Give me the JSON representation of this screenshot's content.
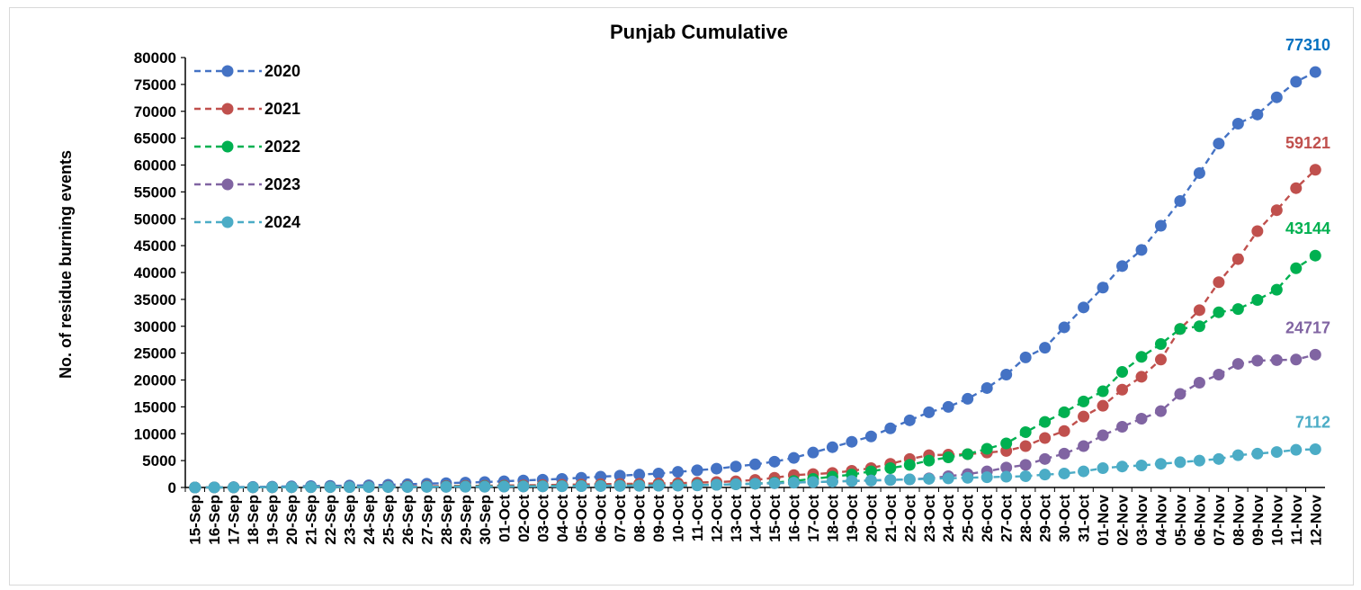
{
  "chart_data": {
    "type": "line",
    "title": "Punjab Cumulative",
    "ylabel": "No. of residue burning events",
    "xlabel": "",
    "ylim": [
      0,
      80000
    ],
    "ytick_step": 5000,
    "yticks": [
      "0",
      "5000",
      "10000",
      "15000",
      "20000",
      "25000",
      "30000",
      "35000",
      "40000",
      "45000",
      "50000",
      "55000",
      "60000",
      "65000",
      "70000",
      "75000",
      "80000"
    ],
    "grid": false,
    "legend_position": "top-left",
    "categories": [
      "15-Sep",
      "16-Sep",
      "17-Sep",
      "18-Sep",
      "19-Sep",
      "20-Sep",
      "21-Sep",
      "22-Sep",
      "23-Sep",
      "24-Sep",
      "25-Sep",
      "26-Sep",
      "27-Sep",
      "28-Sep",
      "29-Sep",
      "30-Sep",
      "01-Oct",
      "02-Oct",
      "03-Oct",
      "04-Oct",
      "05-Oct",
      "06-Oct",
      "07-Oct",
      "08-Oct",
      "09-Oct",
      "10-Oct",
      "11-Oct",
      "12-Oct",
      "13-Oct",
      "14-Oct",
      "15-Oct",
      "16-Oct",
      "17-Oct",
      "18-Oct",
      "19-Oct",
      "20-Oct",
      "21-Oct",
      "22-Oct",
      "23-Oct",
      "24-Oct",
      "25-Oct",
      "26-Oct",
      "27-Oct",
      "28-Oct",
      "29-Oct",
      "30-Oct",
      "31-Oct",
      "01-Nov",
      "02-Nov",
      "03-Nov",
      "04-Nov",
      "05-Nov",
      "06-Nov",
      "07-Nov",
      "08-Nov",
      "09-Nov",
      "10-Nov",
      "11-Nov",
      "12-Nov"
    ],
    "series": [
      {
        "name": "2020",
        "color": "#4472C4",
        "end_label": "77310",
        "end_label_color": "#0070C0",
        "values": [
          0,
          30,
          60,
          100,
          150,
          200,
          250,
          300,
          350,
          400,
          500,
          600,
          700,
          800,
          900,
          1000,
          1150,
          1300,
          1450,
          1600,
          1800,
          2000,
          2200,
          2400,
          2600,
          2900,
          3200,
          3500,
          3900,
          4300,
          4800,
          5500,
          6500,
          7500,
          8500,
          9500,
          11000,
          12500,
          14000,
          15000,
          16500,
          18500,
          21000,
          24200,
          26000,
          29800,
          33500,
          37200,
          41200,
          44200,
          48700,
          53300,
          58500,
          64000,
          67700,
          69400,
          72600,
          75500,
          77310
        ]
      },
      {
        "name": "2021",
        "color": "#C0504D",
        "end_label": "59121",
        "end_label_color": "#C0504D",
        "values": [
          0,
          10,
          20,
          30,
          40,
          60,
          80,
          100,
          120,
          140,
          170,
          200,
          230,
          260,
          290,
          320,
          360,
          400,
          450,
          500,
          550,
          600,
          650,
          700,
          750,
          800,
          900,
          1000,
          1150,
          1400,
          1800,
          2300,
          2500,
          2700,
          3100,
          3600,
          4400,
          5300,
          6000,
          6100,
          6200,
          6500,
          6800,
          7700,
          9200,
          10500,
          13200,
          15200,
          18200,
          20600,
          23800,
          29500,
          33000,
          38200,
          42500,
          47700,
          51600,
          55700,
          59121
        ]
      },
      {
        "name": "2022",
        "color": "#00B050",
        "end_label": "43144",
        "end_label_color": "#00B050",
        "values": [
          0,
          10,
          20,
          30,
          40,
          50,
          60,
          70,
          80,
          90,
          100,
          120,
          140,
          160,
          180,
          200,
          220,
          240,
          260,
          280,
          300,
          320,
          340,
          360,
          380,
          400,
          450,
          500,
          600,
          700,
          900,
          1200,
          1600,
          2000,
          2400,
          3000,
          3600,
          4200,
          5000,
          5600,
          6200,
          7200,
          8200,
          10300,
          12200,
          14000,
          16000,
          17900,
          21500,
          24300,
          26700,
          29500,
          30000,
          32600,
          33200,
          34900,
          36800,
          40800,
          43144
        ]
      },
      {
        "name": "2023",
        "color": "#8064A2",
        "end_label": "24717",
        "end_label_color": "#8064A2",
        "values": [
          0,
          10,
          20,
          30,
          40,
          50,
          60,
          70,
          80,
          90,
          100,
          110,
          120,
          130,
          140,
          150,
          170,
          190,
          210,
          230,
          250,
          270,
          290,
          310,
          330,
          350,
          400,
          500,
          600,
          700,
          800,
          900,
          1000,
          1100,
          1200,
          1300,
          1400,
          1500,
          1700,
          2100,
          2500,
          3000,
          3700,
          4200,
          5300,
          6300,
          7700,
          9700,
          11300,
          12800,
          14200,
          17400,
          19500,
          21000,
          23000,
          23600,
          23700,
          23800,
          24717
        ]
      },
      {
        "name": "2024",
        "color": "#4BACC6",
        "end_label": "7112",
        "end_label_color": "#4BACC6",
        "values": [
          0,
          10,
          20,
          30,
          40,
          50,
          60,
          70,
          80,
          90,
          100,
          110,
          120,
          130,
          140,
          150,
          170,
          190,
          210,
          230,
          250,
          270,
          290,
          310,
          330,
          350,
          400,
          500,
          600,
          700,
          800,
          900,
          1000,
          1100,
          1200,
          1300,
          1400,
          1500,
          1600,
          1700,
          1800,
          1900,
          2000,
          2100,
          2400,
          2600,
          3000,
          3600,
          3900,
          4100,
          4400,
          4700,
          5000,
          5300,
          6000,
          6300,
          6600,
          7000,
          7112
        ]
      }
    ]
  }
}
